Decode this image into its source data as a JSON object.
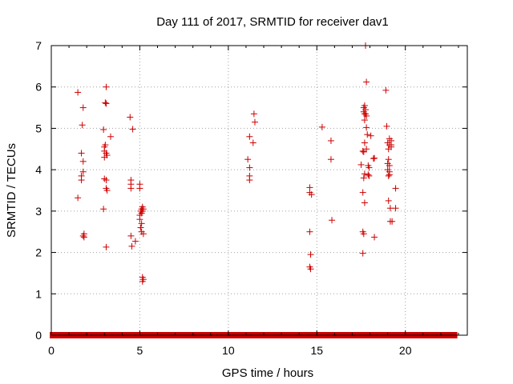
{
  "chart_data": {
    "type": "scatter",
    "title": "Day 111 of 2017, SRMTID for receiver dav1",
    "xlabel": "GPS time / hours",
    "ylabel": "SRMTID / TECUs",
    "xlim": [
      0,
      23.5
    ],
    "ylim": [
      0,
      7
    ],
    "xticks": [
      0,
      5,
      10,
      15,
      20
    ],
    "yticks": [
      0,
      1,
      2,
      3,
      4,
      5,
      6,
      7
    ],
    "grid": true,
    "marker": "+",
    "marker_color": "#cc0000",
    "series": [
      {
        "name": "SRMTID",
        "points": [
          [
            1.5,
            5.87
          ],
          [
            1.5,
            3.32
          ],
          [
            1.7,
            4.4
          ],
          [
            1.7,
            3.85
          ],
          [
            1.7,
            3.75
          ],
          [
            1.75,
            5.08
          ],
          [
            1.8,
            5.5
          ],
          [
            1.8,
            4.2
          ],
          [
            1.8,
            3.95
          ],
          [
            1.8,
            2.4
          ],
          [
            1.85,
            2.45
          ],
          [
            1.85,
            2.37
          ],
          [
            2.95,
            4.97
          ],
          [
            2.95,
            3.05
          ],
          [
            3.0,
            4.55
          ],
          [
            3.0,
            4.45
          ],
          [
            3.0,
            4.3
          ],
          [
            3.0,
            3.78
          ],
          [
            3.05,
            5.62
          ],
          [
            3.05,
            4.6
          ],
          [
            3.1,
            6.0
          ],
          [
            3.1,
            5.6
          ],
          [
            3.1,
            4.4
          ],
          [
            3.1,
            3.75
          ],
          [
            3.1,
            3.55
          ],
          [
            3.1,
            2.13
          ],
          [
            3.15,
            4.35
          ],
          [
            3.15,
            3.5
          ],
          [
            3.35,
            4.8
          ],
          [
            4.45,
            5.27
          ],
          [
            4.5,
            3.75
          ],
          [
            4.5,
            3.65
          ],
          [
            4.5,
            3.55
          ],
          [
            4.5,
            2.4
          ],
          [
            4.55,
            2.15
          ],
          [
            4.6,
            4.98
          ],
          [
            4.75,
            2.27
          ],
          [
            5.0,
            3.65
          ],
          [
            5.0,
            3.55
          ],
          [
            5.0,
            2.9
          ],
          [
            5.0,
            2.8
          ],
          [
            5.05,
            3.0
          ],
          [
            5.05,
            2.6
          ],
          [
            5.1,
            3.05
          ],
          [
            5.1,
            2.95
          ],
          [
            5.1,
            2.7
          ],
          [
            5.1,
            2.5
          ],
          [
            5.15,
            3.1
          ],
          [
            5.15,
            3.0
          ],
          [
            5.15,
            1.4
          ],
          [
            5.15,
            1.3
          ],
          [
            5.2,
            3.05
          ],
          [
            5.2,
            2.45
          ],
          [
            5.2,
            1.35
          ],
          [
            11.1,
            4.25
          ],
          [
            11.2,
            4.8
          ],
          [
            11.2,
            4.05
          ],
          [
            11.2,
            3.85
          ],
          [
            11.2,
            3.75
          ],
          [
            11.4,
            4.65
          ],
          [
            11.45,
            5.35
          ],
          [
            11.5,
            5.15
          ],
          [
            14.6,
            3.57
          ],
          [
            14.6,
            3.45
          ],
          [
            14.6,
            2.5
          ],
          [
            14.6,
            1.65
          ],
          [
            14.65,
            1.95
          ],
          [
            14.65,
            1.6
          ],
          [
            14.7,
            3.4
          ],
          [
            15.3,
            5.03
          ],
          [
            15.8,
            4.7
          ],
          [
            15.8,
            4.25
          ],
          [
            15.85,
            2.78
          ],
          [
            17.5,
            4.12
          ],
          [
            17.6,
            4.45
          ],
          [
            17.6,
            3.45
          ],
          [
            17.6,
            2.5
          ],
          [
            17.6,
            1.98
          ],
          [
            17.65,
            5.5
          ],
          [
            17.65,
            5.4
          ],
          [
            17.65,
            4.43
          ],
          [
            17.65,
            3.8
          ],
          [
            17.65,
            2.45
          ],
          [
            17.7,
            5.55
          ],
          [
            17.7,
            5.35
          ],
          [
            17.7,
            5.2
          ],
          [
            17.7,
            4.65
          ],
          [
            17.7,
            3.9
          ],
          [
            17.7,
            3.2
          ],
          [
            17.75,
            7.0
          ],
          [
            17.75,
            5.45
          ],
          [
            17.75,
            5.35
          ],
          [
            17.8,
            6.12
          ],
          [
            17.8,
            5.3
          ],
          [
            17.8,
            5.02
          ],
          [
            17.8,
            4.5
          ],
          [
            17.85,
            4.85
          ],
          [
            17.9,
            4.1
          ],
          [
            17.9,
            3.88
          ],
          [
            17.95,
            4.05
          ],
          [
            17.95,
            3.85
          ],
          [
            18.05,
            4.82
          ],
          [
            18.2,
            4.27
          ],
          [
            18.25,
            4.28
          ],
          [
            18.25,
            2.37
          ],
          [
            18.9,
            5.92
          ],
          [
            18.95,
            5.05
          ],
          [
            19.0,
            4.65
          ],
          [
            19.0,
            4.15
          ],
          [
            19.0,
            4.0
          ],
          [
            19.05,
            4.5
          ],
          [
            19.05,
            4.25
          ],
          [
            19.05,
            3.85
          ],
          [
            19.05,
            3.25
          ],
          [
            19.1,
            4.75
          ],
          [
            19.1,
            4.6
          ],
          [
            19.1,
            4.1
          ],
          [
            19.1,
            3.95
          ],
          [
            19.1,
            3.88
          ],
          [
            19.15,
            3.07
          ],
          [
            19.15,
            2.75
          ],
          [
            19.2,
            4.7
          ],
          [
            19.2,
            4.6
          ],
          [
            19.2,
            4.55
          ],
          [
            19.25,
            2.75
          ],
          [
            19.45,
            3.55
          ],
          [
            19.45,
            3.07
          ]
        ]
      }
    ],
    "baseline": {
      "y": 0,
      "segments": [
        [
          0.05,
          3.0
        ],
        [
          3.1,
          4.45
        ],
        [
          4.55,
          5.05
        ],
        [
          5.15,
          12.0
        ],
        [
          12.1,
          22.8
        ]
      ]
    }
  }
}
